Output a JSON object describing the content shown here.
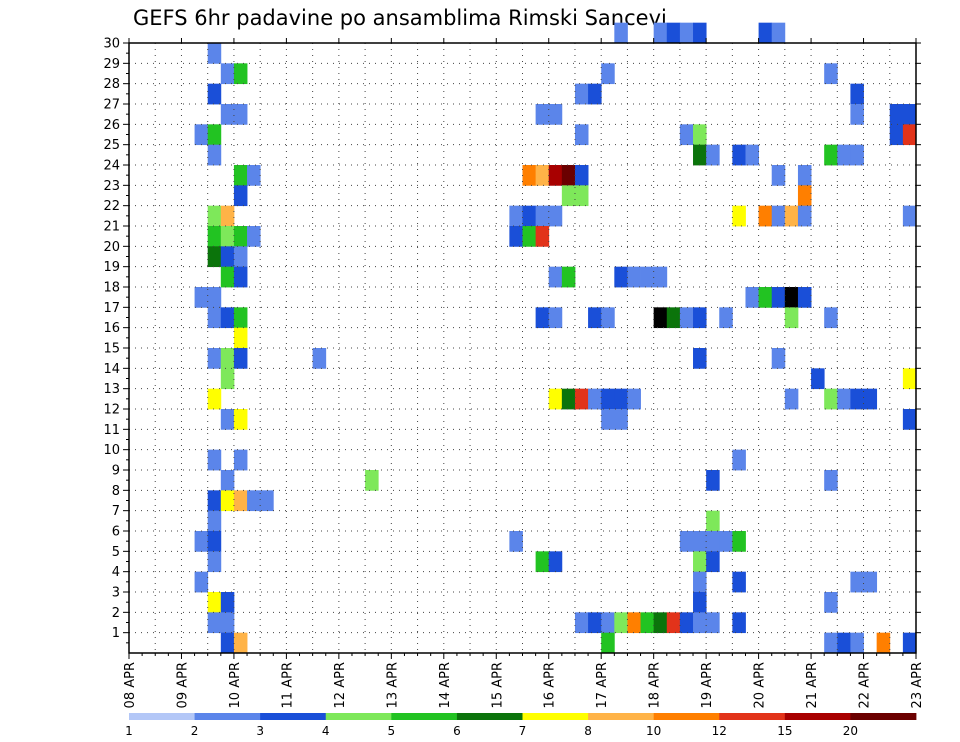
{
  "chart_data": {
    "type": "heatmap",
    "title": "GEFS 6hr padavine po ansamblima Rimski Sancevi",
    "x_tick_labels": [
      "08 APR",
      "09 APR",
      "10 APR",
      "11 APR",
      "12 APR",
      "13 APR",
      "14 APR",
      "15 APR",
      "16 APR",
      "17 APR",
      "18 APR",
      "19 APR",
      "20 APR",
      "21 APR",
      "22 APR",
      "23 APR"
    ],
    "y_tick_labels": [
      "1",
      "2",
      "3",
      "4",
      "5",
      "6",
      "7",
      "8",
      "9",
      "10",
      "11",
      "12",
      "13",
      "14",
      "15",
      "16",
      "17",
      "18",
      "19",
      "20",
      "21",
      "22",
      "23",
      "24",
      "25",
      "26",
      "27",
      "28",
      "29",
      "30"
    ],
    "y_range": [
      0,
      30
    ],
    "x_steps_per_day": 4,
    "x_steps_total": 60,
    "grid": true,
    "colorbar": {
      "placement": "bottom",
      "labels": [
        "1",
        "2",
        "3",
        "4",
        "5",
        "6",
        "7",
        "8",
        "10",
        "12",
        "15",
        "20"
      ],
      "colors": [
        "#b3c7f7",
        "#5b85ea",
        "#1a4fd8",
        "#7ee85a",
        "#22c322",
        "#0b740b",
        "#ffff00",
        "#ffb347",
        "#ff7f00",
        "#e2331a",
        "#a80000",
        "#6b0000"
      ]
    },
    "cells": [
      [
        30,
        37,
        1
      ],
      [
        30,
        40,
        1
      ],
      [
        30,
        41,
        2
      ],
      [
        30,
        42,
        1
      ],
      [
        30,
        43,
        2
      ],
      [
        30,
        48,
        2
      ],
      [
        30,
        49,
        1
      ],
      [
        29,
        6,
        1
      ],
      [
        28,
        7,
        1
      ],
      [
        28,
        8,
        4
      ],
      [
        28,
        36,
        1
      ],
      [
        28,
        53,
        1
      ],
      [
        27,
        6,
        2
      ],
      [
        27,
        34,
        1
      ],
      [
        27,
        35,
        2
      ],
      [
        27,
        55,
        2
      ],
      [
        26,
        7,
        1
      ],
      [
        26,
        8,
        1
      ],
      [
        26,
        31,
        1
      ],
      [
        26,
        32,
        1
      ],
      [
        26,
        55,
        1
      ],
      [
        26,
        58,
        2
      ],
      [
        26,
        59,
        2
      ],
      [
        25,
        5,
        1
      ],
      [
        25,
        6,
        4
      ],
      [
        25,
        34,
        1
      ],
      [
        25,
        42,
        1
      ],
      [
        25,
        43,
        3
      ],
      [
        25,
        58,
        2
      ],
      [
        25,
        59,
        9
      ],
      [
        24,
        6,
        1
      ],
      [
        24,
        43,
        5
      ],
      [
        24,
        44,
        1
      ],
      [
        24,
        46,
        2
      ],
      [
        24,
        47,
        1
      ],
      [
        24,
        53,
        4
      ],
      [
        24,
        54,
        1
      ],
      [
        24,
        55,
        1
      ],
      [
        23,
        8,
        4
      ],
      [
        23,
        9,
        1
      ],
      [
        23,
        30,
        8
      ],
      [
        23,
        31,
        7
      ],
      [
        23,
        32,
        10
      ],
      [
        23,
        33,
        11
      ],
      [
        23,
        34,
        2
      ],
      [
        23,
        49,
        1
      ],
      [
        23,
        51,
        1
      ],
      [
        22,
        8,
        2
      ],
      [
        22,
        33,
        3
      ],
      [
        22,
        34,
        3
      ],
      [
        22,
        51,
        8
      ],
      [
        21,
        6,
        3
      ],
      [
        21,
        7,
        7
      ],
      [
        21,
        29,
        1
      ],
      [
        21,
        30,
        2
      ],
      [
        21,
        31,
        1
      ],
      [
        21,
        32,
        1
      ],
      [
        21,
        46,
        6
      ],
      [
        21,
        48,
        8
      ],
      [
        21,
        49,
        1
      ],
      [
        21,
        50,
        7
      ],
      [
        21,
        51,
        1
      ],
      [
        21,
        59,
        1
      ],
      [
        20,
        6,
        4
      ],
      [
        20,
        7,
        3
      ],
      [
        20,
        8,
        4
      ],
      [
        20,
        9,
        1
      ],
      [
        20,
        29,
        2
      ],
      [
        20,
        30,
        4
      ],
      [
        20,
        31,
        9
      ],
      [
        19,
        6,
        5
      ],
      [
        19,
        7,
        2
      ],
      [
        19,
        8,
        1
      ],
      [
        18,
        7,
        4
      ],
      [
        18,
        8,
        2
      ],
      [
        18,
        32,
        1
      ],
      [
        18,
        33,
        4
      ],
      [
        18,
        37,
        2
      ],
      [
        18,
        38,
        1
      ],
      [
        18,
        39,
        1
      ],
      [
        18,
        40,
        1
      ],
      [
        17,
        5,
        1
      ],
      [
        17,
        6,
        1
      ],
      [
        17,
        47,
        1
      ],
      [
        17,
        48,
        4
      ],
      [
        17,
        49,
        2
      ],
      [
        17,
        50,
        12
      ],
      [
        17,
        51,
        2
      ],
      [
        16,
        6,
        1
      ],
      [
        16,
        7,
        2
      ],
      [
        16,
        8,
        4
      ],
      [
        16,
        31,
        2
      ],
      [
        16,
        32,
        1
      ],
      [
        16,
        35,
        2
      ],
      [
        16,
        36,
        1
      ],
      [
        16,
        40,
        12
      ],
      [
        16,
        41,
        5
      ],
      [
        16,
        42,
        1
      ],
      [
        16,
        43,
        2
      ],
      [
        16,
        45,
        1
      ],
      [
        16,
        50,
        3
      ],
      [
        16,
        53,
        1
      ],
      [
        15,
        8,
        6
      ],
      [
        14,
        6,
        1
      ],
      [
        14,
        7,
        3
      ],
      [
        14,
        8,
        2
      ],
      [
        14,
        14,
        1
      ],
      [
        14,
        43,
        2
      ],
      [
        14,
        49,
        1
      ],
      [
        13,
        7,
        3
      ],
      [
        13,
        52,
        2
      ],
      [
        13,
        59,
        6
      ],
      [
        12,
        6,
        6
      ],
      [
        12,
        32,
        6
      ],
      [
        12,
        33,
        5
      ],
      [
        12,
        34,
        9
      ],
      [
        12,
        35,
        1
      ],
      [
        12,
        36,
        2
      ],
      [
        12,
        37,
        2
      ],
      [
        12,
        38,
        1
      ],
      [
        12,
        50,
        1
      ],
      [
        12,
        53,
        3
      ],
      [
        12,
        54,
        1
      ],
      [
        12,
        55,
        2
      ],
      [
        12,
        56,
        2
      ],
      [
        11,
        7,
        1
      ],
      [
        11,
        8,
        6
      ],
      [
        11,
        36,
        1
      ],
      [
        11,
        37,
        1
      ],
      [
        11,
        59,
        2
      ],
      [
        9,
        6,
        1
      ],
      [
        9,
        8,
        1
      ],
      [
        9,
        46,
        1
      ],
      [
        8,
        7,
        1
      ],
      [
        8,
        18,
        3
      ],
      [
        8,
        44,
        2
      ],
      [
        8,
        53,
        1
      ],
      [
        7,
        6,
        2
      ],
      [
        7,
        7,
        6
      ],
      [
        7,
        8,
        7
      ],
      [
        7,
        9,
        1
      ],
      [
        7,
        10,
        1
      ],
      [
        6,
        6,
        1
      ],
      [
        6,
        44,
        3
      ],
      [
        5,
        5,
        1
      ],
      [
        5,
        6,
        2
      ],
      [
        5,
        29,
        1
      ],
      [
        5,
        42,
        1
      ],
      [
        5,
        43,
        1
      ],
      [
        5,
        44,
        1
      ],
      [
        5,
        45,
        1
      ],
      [
        5,
        46,
        4
      ],
      [
        4,
        6,
        1
      ],
      [
        4,
        31,
        4
      ],
      [
        4,
        32,
        2
      ],
      [
        4,
        43,
        3
      ],
      [
        4,
        44,
        2
      ],
      [
        3,
        5,
        1
      ],
      [
        3,
        43,
        1
      ],
      [
        3,
        46,
        2
      ],
      [
        3,
        55,
        1
      ],
      [
        3,
        56,
        1
      ],
      [
        2,
        6,
        6
      ],
      [
        2,
        7,
        2
      ],
      [
        2,
        43,
        2
      ],
      [
        2,
        53,
        1
      ],
      [
        1,
        6,
        1
      ],
      [
        1,
        7,
        1
      ],
      [
        1,
        34,
        1
      ],
      [
        1,
        35,
        2
      ],
      [
        1,
        36,
        1
      ],
      [
        1,
        37,
        3
      ],
      [
        1,
        38,
        8
      ],
      [
        1,
        39,
        4
      ],
      [
        1,
        40,
        5
      ],
      [
        1,
        41,
        9
      ],
      [
        1,
        42,
        2
      ],
      [
        1,
        43,
        1
      ],
      [
        1,
        44,
        1
      ],
      [
        1,
        46,
        2
      ],
      [
        0,
        7,
        2
      ],
      [
        0,
        8,
        7
      ],
      [
        0,
        36,
        4
      ],
      [
        0,
        53,
        1
      ],
      [
        0,
        54,
        2
      ],
      [
        0,
        55,
        1
      ],
      [
        0,
        57,
        8
      ],
      [
        0,
        59,
        2
      ]
    ]
  }
}
